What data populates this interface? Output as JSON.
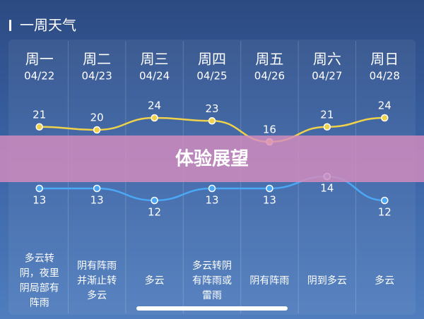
{
  "title": "一周天气",
  "banner": "体验展望",
  "chart_data": {
    "type": "line",
    "categories": [
      "周一",
      "周二",
      "周三",
      "周四",
      "周五",
      "周六",
      "周日"
    ],
    "dates": [
      "04/22",
      "04/23",
      "04/24",
      "04/25",
      "04/26",
      "04/27",
      "04/28"
    ],
    "series": [
      {
        "color": "#f0d24a",
        "values": [
          21,
          20,
          24,
          23,
          16,
          21,
          24
        ]
      },
      {
        "color": "#4aa8f5",
        "values": [
          13,
          13,
          12,
          13,
          13,
          14,
          12
        ]
      }
    ],
    "weather": [
      [
        "多云转",
        "阴，夜里",
        "阴局部有",
        "阵雨"
      ],
      [
        "阴有阵雨",
        "并渐止转",
        "多云"
      ],
      [
        "多云"
      ],
      [
        "多云转阴",
        "有阵雨或",
        "雷雨"
      ],
      [
        "阴有阵雨"
      ],
      [
        "阴到多云"
      ],
      [
        "多云"
      ]
    ]
  }
}
